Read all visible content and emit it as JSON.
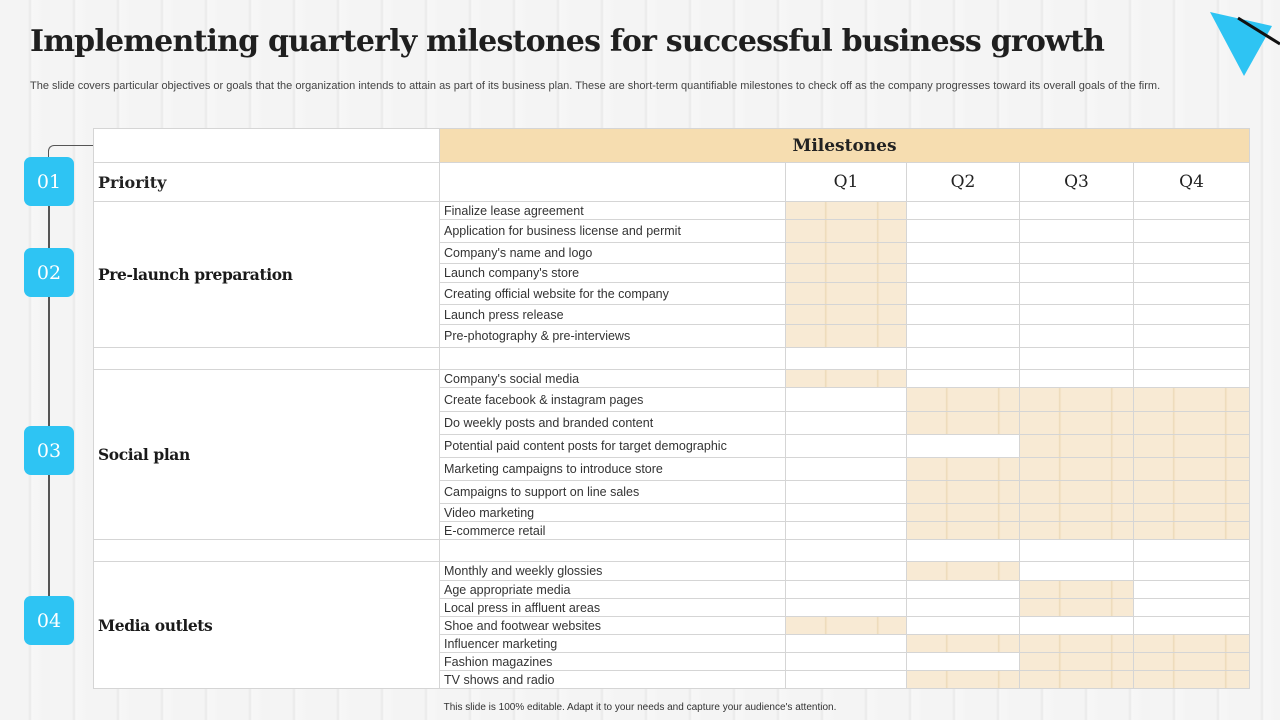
{
  "title": "Implementing quarterly milestones for successful business growth",
  "subtitle": "The slide covers particular objectives or goals that the organization intends to attain as part of its business plan. These are short-term quantifiable milestones to check off as the company progresses toward its overall goals of the firm.",
  "footer": "This slide is 100% editable. Adapt it to your needs and capture your audience's attention.",
  "colors": {
    "accent": "#2ec4f3",
    "header_fill": "#f6ddb0",
    "milestone_fill": "#f8ead4"
  },
  "timeline": {
    "steps": [
      "01",
      "02",
      "03",
      "04"
    ]
  },
  "table": {
    "header": "Milestones",
    "priority_label": "Priority",
    "quarters": [
      "Q1",
      "Q2",
      "Q3",
      "Q4"
    ],
    "categories": [
      "Pre-launch preparation",
      "Social plan",
      "Media outlets"
    ],
    "tasks": [
      {
        "name": "Finalize lease agreement",
        "quarters": [
          1,
          0,
          0,
          0
        ]
      },
      {
        "name": "Application for  business license and permit",
        "quarters": [
          1,
          0,
          0,
          0
        ]
      },
      {
        "name": "Company's  name and logo",
        "quarters": [
          1,
          0,
          0,
          0
        ]
      },
      {
        "name": "Launch company's store",
        "quarters": [
          1,
          0,
          0,
          0
        ]
      },
      {
        "name": "Creating official website for the company",
        "quarters": [
          1,
          0,
          0,
          0
        ]
      },
      {
        "name": "Launch press release",
        "quarters": [
          1,
          0,
          0,
          0
        ]
      },
      {
        "name": "Pre-photography  & pre-interviews",
        "quarters": [
          1,
          0,
          0,
          0
        ]
      },
      {
        "name": "Company's  social media",
        "quarters": [
          1,
          0,
          0,
          0
        ]
      },
      {
        "name": "Create facebook  & instagram pages",
        "quarters": [
          0,
          1,
          1,
          1
        ]
      },
      {
        "name": "Do weekly posts and branded  content",
        "quarters": [
          0,
          1,
          1,
          1
        ]
      },
      {
        "name": "Potential paid content posts for target demographic",
        "quarters": [
          0,
          0,
          1,
          1
        ]
      },
      {
        "name": "Marketing campaigns to introduce  store",
        "quarters": [
          0,
          1,
          1,
          1
        ]
      },
      {
        "name": "Campaigns to support on line sales",
        "quarters": [
          0,
          1,
          1,
          1
        ]
      },
      {
        "name": "Video marketing",
        "quarters": [
          0,
          1,
          1,
          1
        ]
      },
      {
        "name": "E-commerce retail",
        "quarters": [
          0,
          1,
          1,
          1
        ]
      },
      {
        "name": "Monthly and weekly  glossies",
        "quarters": [
          0,
          1,
          0,
          0
        ]
      },
      {
        "name": "Age appropriate  media",
        "quarters": [
          0,
          0,
          1,
          0
        ]
      },
      {
        "name": "Local press in affluent  areas",
        "quarters": [
          0,
          0,
          1,
          0
        ]
      },
      {
        "name": "Shoe and footwear  websites",
        "quarters": [
          1,
          0,
          0,
          0
        ]
      },
      {
        "name": "Influencer  marketing",
        "quarters": [
          0,
          1,
          1,
          1
        ]
      },
      {
        "name": "Fashion magazines",
        "quarters": [
          0,
          0,
          1,
          1
        ]
      },
      {
        "name": "TV shows and radio",
        "quarters": [
          0,
          1,
          1,
          1
        ]
      }
    ]
  }
}
